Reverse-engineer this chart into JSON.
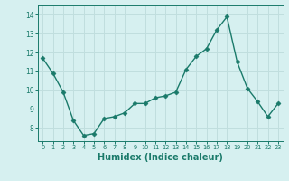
{
  "x": [
    0,
    1,
    2,
    3,
    4,
    5,
    6,
    7,
    8,
    9,
    10,
    11,
    12,
    13,
    14,
    15,
    16,
    17,
    18,
    19,
    20,
    21,
    22,
    23
  ],
  "y": [
    11.7,
    10.9,
    9.9,
    8.4,
    7.6,
    7.7,
    8.5,
    8.6,
    8.8,
    9.3,
    9.3,
    9.6,
    9.7,
    9.9,
    11.1,
    11.8,
    12.2,
    13.2,
    13.9,
    11.5,
    10.1,
    9.4,
    8.6,
    9.3
  ],
  "line_color": "#1a7a6a",
  "marker": "D",
  "markersize": 2.5,
  "linewidth": 1.0,
  "xlabel": "Humidex (Indice chaleur)",
  "xlabel_fontsize": 7,
  "ylim": [
    7.3,
    14.5
  ],
  "yticks": [
    8,
    9,
    10,
    11,
    12,
    13,
    14
  ],
  "xticks": [
    0,
    1,
    2,
    3,
    4,
    5,
    6,
    7,
    8,
    9,
    10,
    11,
    12,
    13,
    14,
    15,
    16,
    17,
    18,
    19,
    20,
    21,
    22,
    23
  ],
  "background_color": "#d6f0f0",
  "grid_color": "#c0dede",
  "tick_color": "#1a7a6a",
  "spine_color": "#1a7a6a"
}
